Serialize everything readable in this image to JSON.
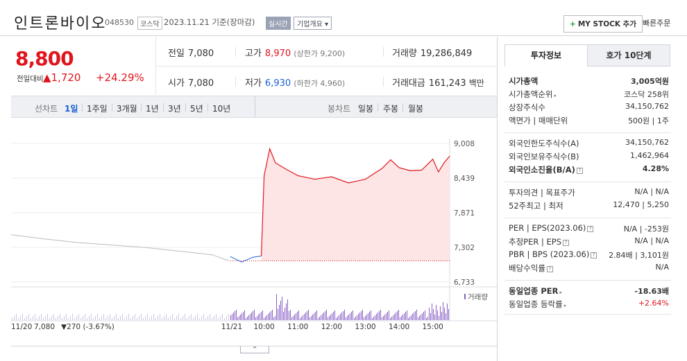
{
  "header": {
    "name": "인트론바이오",
    "code": "048530",
    "market": "코스닥",
    "base_date": "2023.11.21  기준(장마감)",
    "realtime": "실시간",
    "company_overview": "기업개요 ▾",
    "mystock_label": "MY STOCK 추가",
    "mystock_plus": "+",
    "quick_order": "빠른주문"
  },
  "price": {
    "current": "8,800",
    "prev_label": "전일대비",
    "change": "▲1,720",
    "change_rate": "+24.29%"
  },
  "quote": {
    "prev_close_label": "전일",
    "prev_close": "7,080",
    "high_label": "고가",
    "high": "8,970",
    "upper_limit": "(상한가 9,200)",
    "volume_label": "거래량",
    "volume": "19,286,849",
    "open_label": "시가",
    "open": "7,080",
    "low_label": "저가",
    "low": "6,930",
    "lower_limit": "(하한가 4,960)",
    "amount_label": "거래대금",
    "amount": "161,243",
    "amount_unit": "백만"
  },
  "periods": {
    "line_label": "선차트",
    "items": [
      "1일",
      "1주일",
      "3개월",
      "1년",
      "3년",
      "5년",
      "10년"
    ],
    "candle_label": "봉차트",
    "candle_items": [
      "일봉",
      "주봉",
      "월봉"
    ]
  },
  "chart": {
    "y_ticks": [
      "9,008",
      "8,439",
      "7,871",
      "7,302",
      "6,733"
    ],
    "x_ticks": [
      "11/21",
      "10:00",
      "11:00",
      "12:00",
      "13:00",
      "14:00",
      "15:00"
    ],
    "volume_legend": "거래량",
    "prev_day_info_date": "11/20",
    "prev_day_info_price": "7,080",
    "prev_day_info_change": "▼270 (-3.67%)",
    "colors": {
      "up": "#e0151d",
      "down": "#1a5fd3",
      "prev": "#bbbbbb",
      "fill": "#fde5e6",
      "volume": "#8a5fc4"
    }
  },
  "chart_data": {
    "type": "line",
    "series": [
      {
        "name": "11/20",
        "x": [
          "09:00",
          "10:00",
          "11:00",
          "12:00",
          "13:00",
          "14:00",
          "15:00",
          "15:30"
        ],
        "values": [
          7510,
          7440,
          7380,
          7340,
          7300,
          7240,
          7180,
          7080
        ]
      },
      {
        "name": "11/21",
        "x": [
          "09:00",
          "09:20",
          "09:40",
          "09:55",
          "10:00",
          "10:10",
          "10:20",
          "10:40",
          "11:00",
          "11:30",
          "12:00",
          "12:30",
          "13:00",
          "13:30",
          "13:45",
          "14:00",
          "14:20",
          "14:40",
          "15:00",
          "15:10",
          "15:20",
          "15:30"
        ],
        "values": [
          7150,
          7060,
          7140,
          7160,
          8480,
          8920,
          8690,
          8580,
          8480,
          8420,
          8460,
          8360,
          8420,
          8600,
          8740,
          8610,
          8560,
          8570,
          8750,
          8540,
          8690,
          8800
        ]
      }
    ],
    "prev_close": 7080,
    "ylim": [
      6733,
      9008
    ],
    "y_ticks": [
      9008,
      8439,
      7871,
      7302,
      6733
    ]
  },
  "side": {
    "tab_invest": "투자정보",
    "tab_hoga": "호가 10단계",
    "rows": [
      {
        "l": "시가총액",
        "r": "3,005억원"
      },
      {
        "l": "시가총액순위",
        "r": "코스닥 258위"
      },
      {
        "l": "상장주식수",
        "r": "34,150,762"
      },
      {
        "l": "액면가 | 매매단위",
        "r": "500원 | 1주"
      },
      {
        "l": "외국인한도주식수(A)",
        "r": "34,150,762"
      },
      {
        "l": "외국인보유주식수(B)",
        "r": "1,462,964"
      },
      {
        "l": "외국인소진율(B/A)",
        "r": "4.28%"
      },
      {
        "l": "투자의견 | 목표주가",
        "r": "N/A | N/A"
      },
      {
        "l": "52주최고 | 최저",
        "r": "12,470 | 5,250"
      },
      {
        "l": "PER | EPS(2023.06)",
        "r": "N/A | -253원"
      },
      {
        "l": "추정PER | EPS",
        "r": "N/A | N/A"
      },
      {
        "l": "PBR | BPS (2023.06)",
        "r": "2.84배 | 3,101원"
      },
      {
        "l": "배당수익률",
        "r": "N/A"
      },
      {
        "l": "동일업종 PER",
        "r": "-18.63배"
      },
      {
        "l": "동일업종 등락률",
        "r": "+2.64%"
      }
    ]
  },
  "collapse": "^"
}
